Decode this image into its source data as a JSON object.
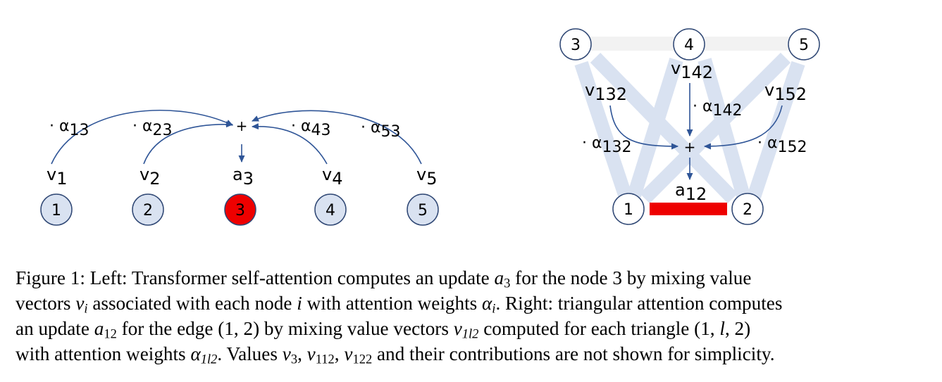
{
  "left_panel": {
    "nodes": [
      {
        "label": "1",
        "fill": "#d9e2f1",
        "stroke": "#2f4774"
      },
      {
        "label": "2",
        "fill": "#d9e2f1",
        "stroke": "#2f4774"
      },
      {
        "label": "3",
        "fill": "#ee0000",
        "stroke": "#2f4774"
      },
      {
        "label": "4",
        "fill": "#d9e2f1",
        "stroke": "#2f4774"
      },
      {
        "label": "5",
        "fill": "#d9e2f1",
        "stroke": "#2f4774"
      }
    ],
    "value_labels": [
      {
        "base": "v",
        "sub": "1"
      },
      {
        "base": "v",
        "sub": "2"
      },
      {
        "base": "a",
        "sub": "3"
      },
      {
        "base": "v",
        "sub": "4"
      },
      {
        "base": "v",
        "sub": "5"
      }
    ],
    "weight_labels": [
      {
        "prefix": "· ",
        "base": "α",
        "sub": "13"
      },
      {
        "prefix": "· ",
        "base": "α",
        "sub": "23"
      },
      {
        "prefix": "· ",
        "base": "α",
        "sub": "43"
      },
      {
        "prefix": "· ",
        "base": "α",
        "sub": "53"
      }
    ],
    "plus": "+",
    "arrow_color": "#2f5597"
  },
  "right_panel": {
    "top_nodes": [
      "3",
      "4",
      "5"
    ],
    "bottom_nodes": [
      "1",
      "2"
    ],
    "edge_color": "#d9e2f1",
    "top_edge_color": "#f2f2f2",
    "highlight_edge_color": "#ee0000",
    "value_labels": [
      {
        "base": "v",
        "sub": "132"
      },
      {
        "base": "v",
        "sub": "142"
      },
      {
        "base": "v",
        "sub": "152"
      }
    ],
    "weight_labels": [
      {
        "prefix": "· ",
        "base": "α",
        "sub": "132"
      },
      {
        "prefix": "· ",
        "base": "α",
        "sub": "142"
      },
      {
        "prefix": "· ",
        "base": "α",
        "sub": "152"
      }
    ],
    "output_label": {
      "base": "a",
      "sub": "12"
    },
    "plus": "+"
  },
  "caption": {
    "l1_a": "Figure 1: Left: Transformer self-attention computes an update ",
    "l1_m1": "a",
    "l1_m1_sub": "3",
    "l1_b": " for the node 3 by mixing value",
    "l2_a": "vectors ",
    "l2_m1": "v",
    "l2_m1_sub": "i",
    "l2_b": " associated with each node ",
    "l2_m2": "i",
    "l2_c": " with attention weights ",
    "l2_m3": "α",
    "l2_m3_sub": "i",
    "l2_d": ". Right: triangular attention computes",
    "l3_a": "an update ",
    "l3_m1": "a",
    "l3_m1_sub": "12",
    "l3_b": " for the edge (1, 2) by mixing value vectors ",
    "l3_m2": "v",
    "l3_m2_sub": "1l2",
    "l3_c": " computed for each triangle (1, ",
    "l3_m3": "l",
    "l3_d": ", 2)",
    "l4_a": "with attention weights ",
    "l4_m1": "α",
    "l4_m1_sub": "1l2",
    "l4_b": ". Values ",
    "l4_m2": "v",
    "l4_m2_sub": "3",
    "l4_c": ", ",
    "l4_m3": "v",
    "l4_m3_sub": "112",
    "l4_d": ", ",
    "l4_m4": "v",
    "l4_m4_sub": "122",
    "l4_e": " and their contributions are not shown for simplicity."
  }
}
